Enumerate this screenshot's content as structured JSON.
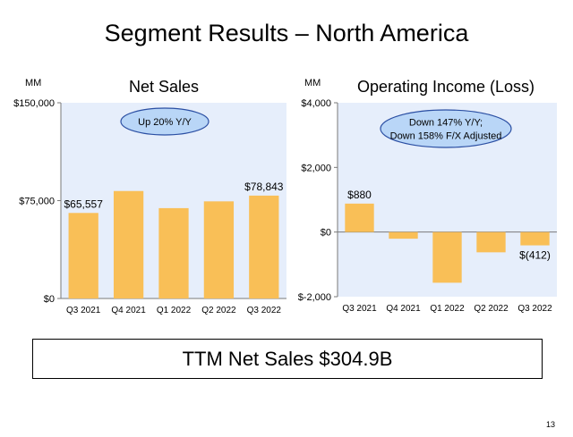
{
  "slide": {
    "title": "Segment Results – North America",
    "ttm_text": "TTM Net Sales $304.9B",
    "page_number": "13"
  },
  "colors": {
    "plot_background": "#e6eefb",
    "bar": "#f9bf57",
    "callout_fill": "#b9d6f7",
    "callout_stroke": "#2b4fa3"
  },
  "chart_data": [
    {
      "type": "bar",
      "title": "Net Sales",
      "unit_label": "MM",
      "categories": [
        "Q3 2021",
        "Q4 2021",
        "Q1 2022",
        "Q2 2022",
        "Q3 2022"
      ],
      "values": [
        65557,
        82360,
        69244,
        74430,
        78843
      ],
      "ylim": [
        0,
        150000
      ],
      "yticks": [
        0,
        75000,
        150000
      ],
      "ytick_labels": [
        "$0",
        "$75,000",
        "$150,000"
      ],
      "data_labels": [
        {
          "index": 0,
          "text": "$65,557"
        },
        {
          "index": 4,
          "text": "$78,843"
        }
      ],
      "callout": [
        "Up 20% Y/Y"
      ]
    },
    {
      "type": "bar",
      "title": "Operating Income (Loss)",
      "unit_label": "MM",
      "categories": [
        "Q3 2021",
        "Q4 2021",
        "Q1 2022",
        "Q2 2022",
        "Q3 2022"
      ],
      "values": [
        880,
        -206,
        -1568,
        -627,
        -412
      ],
      "ylim": [
        -2000,
        4000
      ],
      "yticks": [
        -2000,
        0,
        2000,
        4000
      ],
      "ytick_labels": [
        "$-2,000",
        "$0",
        "$2,000",
        "$4,000"
      ],
      "data_labels": [
        {
          "index": 0,
          "text": "$880"
        },
        {
          "index": 4,
          "text": "$(412)"
        }
      ],
      "callout": [
        "Down 147% Y/Y;",
        "Down 158% F/X Adjusted"
      ]
    }
  ]
}
